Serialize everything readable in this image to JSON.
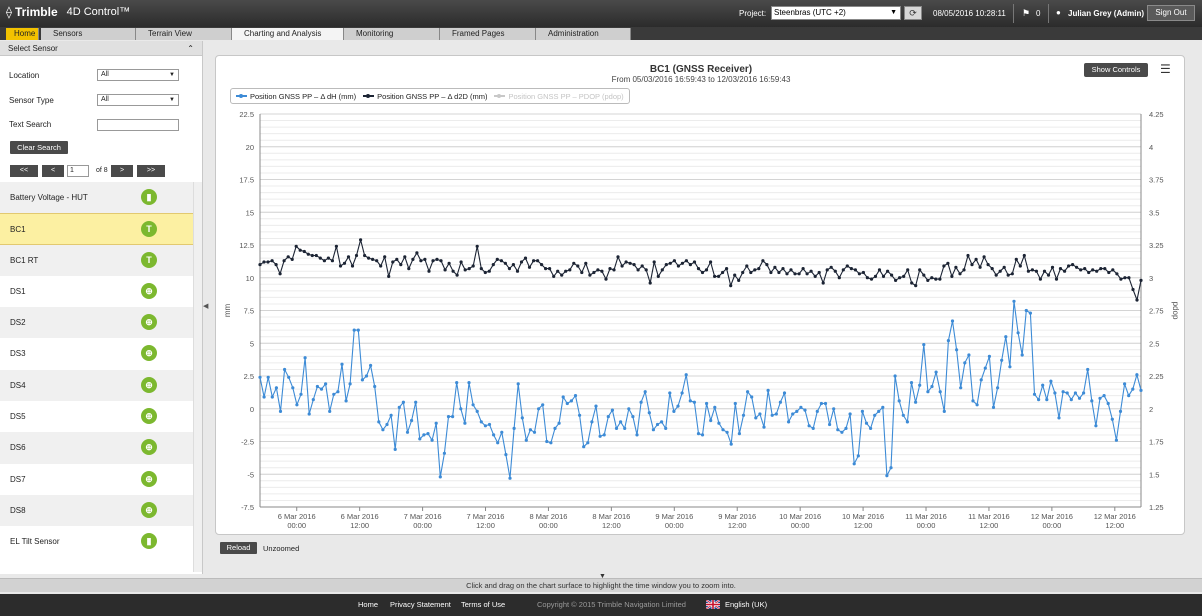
{
  "app": {
    "brand_mark": "⟠",
    "brand": "Trimble",
    "product": "4D Control™"
  },
  "header": {
    "project_label": "Project:",
    "project_value": "Steenbras (UTC +2)",
    "refresh_icon": "refresh-icon",
    "datetime": "08/05/2016 10:28:11",
    "alert_count": "0",
    "user": "Julian Grey (Admin)",
    "signout_label": "Sign Out"
  },
  "nav": {
    "tabs": [
      {
        "label": "Home"
      },
      {
        "label": "Sensors"
      },
      {
        "label": "Terrain View"
      },
      {
        "label": "Charting and Analysis"
      },
      {
        "label": "Monitoring"
      },
      {
        "label": "Framed Pages"
      },
      {
        "label": "Administration"
      }
    ]
  },
  "sidebar": {
    "header": "Select Sensor",
    "location_label": "Location",
    "location_value": "All",
    "sensor_type_label": "Sensor Type",
    "sensor_type_value": "All",
    "text_search_label": "Text Search",
    "text_search_value": "",
    "clear_search_label": "Clear Search",
    "pager": {
      "first": "<<",
      "prev": "<",
      "page": "1",
      "of": "of 8",
      "next": ">",
      "last": ">>"
    },
    "sensors": [
      {
        "name": "Battery Voltage - HUT",
        "icon": "battery-icon",
        "glyph": "▮"
      },
      {
        "name": "BC1",
        "icon": "gnss-antenna-icon",
        "glyph": "T"
      },
      {
        "name": "BC1 RT",
        "icon": "gnss-antenna-icon",
        "glyph": "T"
      },
      {
        "name": "DS1",
        "icon": "prism-icon",
        "glyph": "⊕"
      },
      {
        "name": "DS2",
        "icon": "prism-icon",
        "glyph": "⊕"
      },
      {
        "name": "DS3",
        "icon": "prism-icon",
        "glyph": "⊕"
      },
      {
        "name": "DS4",
        "icon": "prism-icon",
        "glyph": "⊕"
      },
      {
        "name": "DS5",
        "icon": "prism-icon",
        "glyph": "⊕"
      },
      {
        "name": "DS6",
        "icon": "prism-icon",
        "glyph": "⊕"
      },
      {
        "name": "DS7",
        "icon": "prism-icon",
        "glyph": "⊕"
      },
      {
        "name": "DS8",
        "icon": "prism-icon",
        "glyph": "⊕"
      },
      {
        "name": "EL Tilt Sensor",
        "icon": "tilt-sensor-icon",
        "glyph": "▮"
      }
    ],
    "selected": "BC1"
  },
  "chart_controls": {
    "show_controls_label": "Show Controls",
    "menu_icon": "hamburger-icon",
    "reload_label": "Reload",
    "zoom_status": "Unzoomed"
  },
  "chart_data": {
    "type": "line",
    "title": "BC1 (GNSS Receiver)",
    "subtitle": "From 05/03/2016 16:59:43 to 12/03/2016 16:59:43",
    "ylabel": "mm",
    "y2label": "pdop",
    "ylim": [
      -7.5,
      22.5
    ],
    "y_ticks": [
      -7.5,
      -5,
      -2.5,
      0,
      2.5,
      5,
      7.5,
      10,
      12.5,
      15,
      17.5,
      20,
      22.5
    ],
    "y2lim": [
      1.25,
      4.25
    ],
    "y2_ticks": [
      1.25,
      1.5,
      1.75,
      2,
      2.25,
      2.5,
      2.75,
      3,
      3.25,
      3.5,
      3.75,
      4,
      4.25
    ],
    "x_start": "05/03/2016 16:59:43",
    "x_end": "12/03/2016 16:59:43",
    "x_ticks": [
      {
        "date": "6 Mar 2016",
        "time": "00:00"
      },
      {
        "date": "6 Mar 2016",
        "time": "12:00"
      },
      {
        "date": "7 Mar 2016",
        "time": "00:00"
      },
      {
        "date": "7 Mar 2016",
        "time": "12:00"
      },
      {
        "date": "8 Mar 2016",
        "time": "00:00"
      },
      {
        "date": "8 Mar 2016",
        "time": "12:00"
      },
      {
        "date": "9 Mar 2016",
        "time": "00:00"
      },
      {
        "date": "9 Mar 2016",
        "time": "12:00"
      },
      {
        "date": "10 Mar 2016",
        "time": "00:00"
      },
      {
        "date": "10 Mar 2016",
        "time": "12:00"
      },
      {
        "date": "11 Mar 2016",
        "time": "00:00"
      },
      {
        "date": "11 Mar 2016",
        "time": "12:00"
      },
      {
        "date": "12 Mar 2016",
        "time": "00:00"
      },
      {
        "date": "12 Mar 2016",
        "time": "12:00"
      }
    ],
    "grid": true,
    "legend_position": "top-left",
    "series": [
      {
        "name": "Position GNSS PP – Δ dH (mm)",
        "color": "#3d8bd6",
        "axis": "left",
        "values": [
          2.4,
          0.9,
          2.4,
          0.9,
          1.6,
          -0.2,
          3.0,
          2.4,
          1.6,
          0.3,
          1.1,
          3.9,
          -0.4,
          0.7,
          1.7,
          1.5,
          1.9,
          -0.2,
          1.1,
          1.3,
          3.4,
          0.6,
          1.9,
          6.0,
          6.0,
          2.2,
          2.5,
          3.3,
          1.7,
          -1.0,
          -1.6,
          -1.2,
          -0.5,
          -3.1,
          0.1,
          0.5,
          -1.8,
          -0.9,
          0.5,
          -2.3,
          -2.0,
          -1.9,
          -2.4,
          -1.1,
          -5.2,
          -3.4,
          -0.6,
          -0.6,
          2.0,
          0.0,
          -1.1,
          2.0,
          0.3,
          -0.2,
          -1.0,
          -1.3,
          -1.2,
          -2.0,
          -2.6,
          -1.8,
          -3.5,
          -5.3,
          -1.5,
          1.9,
          -0.7,
          -2.4,
          -1.6,
          -1.8,
          0.0,
          0.3,
          -2.5,
          -2.6,
          -1.5,
          -1.1,
          0.9,
          0.4,
          0.6,
          1.0,
          -0.5,
          -2.9,
          -2.6,
          -1.0,
          0.2,
          -2.1,
          -2.0,
          -0.6,
          -0.1,
          -1.5,
          -1.0,
          -1.5,
          0.0,
          -0.6,
          -2.0,
          0.5,
          1.3,
          -0.3,
          -1.6,
          -1.2,
          -1.0,
          -1.5,
          1.2,
          -0.2,
          0.2,
          1.2,
          2.6,
          0.6,
          0.5,
          -1.9,
          -2.0,
          0.4,
          -0.9,
          0.1,
          -1.1,
          -1.6,
          -1.8,
          -2.7,
          0.4,
          -1.9,
          -0.5,
          1.3,
          0.9,
          -0.7,
          -0.4,
          -1.4,
          1.4,
          -0.5,
          -0.4,
          0.5,
          1.2,
          -1.0,
          -0.4,
          -0.2,
          0.1,
          -0.1,
          -1.3,
          -1.5,
          -0.2,
          0.4,
          0.4,
          -1.2,
          0.0,
          -1.6,
          -1.8,
          -1.5,
          -0.4,
          -4.2,
          -3.6,
          -0.2,
          -1.1,
          -1.5,
          -0.5,
          -0.2,
          0.1,
          -5.1,
          -4.5,
          2.5,
          0.6,
          -0.5,
          -1.0,
          2.0,
          0.5,
          1.8,
          4.9,
          1.3,
          1.7,
          2.8,
          1.3,
          -0.2,
          5.2,
          6.7,
          4.5,
          1.6,
          3.5,
          4.1,
          0.6,
          0.3,
          2.2,
          3.1,
          4.0,
          0.1,
          1.6,
          3.7,
          5.5,
          3.2,
          8.2,
          5.8,
          4.1,
          7.5,
          7.3,
          1.1,
          0.7,
          1.8,
          0.7,
          2.1,
          1.2,
          -0.7,
          1.3,
          1.2,
          0.7,
          1.2,
          0.8,
          1.2,
          3.0,
          0.6,
          -1.3,
          0.8,
          1.0,
          0.4,
          -0.8,
          -2.4,
          -0.2,
          1.9,
          1.0,
          1.5,
          2.6,
          1.4
        ]
      },
      {
        "name": "Position GNSS PP – Δ d2D (mm)",
        "color": "#1c2434",
        "axis": "left",
        "values": [
          11.0,
          11.2,
          11.2,
          11.3,
          11.0,
          10.3,
          11.3,
          11.6,
          11.4,
          12.4,
          12.1,
          12.0,
          11.8,
          11.7,
          11.7,
          11.5,
          11.3,
          11.5,
          11.3,
          12.4,
          10.9,
          11.1,
          11.6,
          10.9,
          11.7,
          12.9,
          11.7,
          11.5,
          11.4,
          11.3,
          10.9,
          11.6,
          10.1,
          11.2,
          11.4,
          11.0,
          11.6,
          10.7,
          11.4,
          11.9,
          11.3,
          11.4,
          10.5,
          11.3,
          11.4,
          11.3,
          10.6,
          11.1,
          10.5,
          10.2,
          11.2,
          10.6,
          10.7,
          10.9,
          12.4,
          10.7,
          10.4,
          10.5,
          11.0,
          11.4,
          11.3,
          11.1,
          10.7,
          11.0,
          10.5,
          11.2,
          11.5,
          10.8,
          11.3,
          11.3,
          11.0,
          10.7,
          10.7,
          10.1,
          10.5,
          10.2,
          10.5,
          10.6,
          11.1,
          10.9,
          10.4,
          11.1,
          10.2,
          10.4,
          10.6,
          10.5,
          9.9,
          10.7,
          10.6,
          11.6,
          10.9,
          11.2,
          11.1,
          11.0,
          10.6,
          10.9,
          10.6,
          9.6,
          11.2,
          10.1,
          10.6,
          11.0,
          11.1,
          11.3,
          10.9,
          11.1,
          11.3,
          11.0,
          11.2,
          10.7,
          10.4,
          10.6,
          11.2,
          10.1,
          10.1,
          10.4,
          10.7,
          9.4,
          10.2,
          9.8,
          10.4,
          10.9,
          10.4,
          10.6,
          10.7,
          11.3,
          11.0,
          10.4,
          10.8,
          10.4,
          10.7,
          10.3,
          10.6,
          10.3,
          10.3,
          10.7,
          10.3,
          10.5,
          10.1,
          10.4,
          9.6,
          10.6,
          10.8,
          10.5,
          10.0,
          10.6,
          10.9,
          10.7,
          10.6,
          10.3,
          10.4,
          10.0,
          9.9,
          10.1,
          10.6,
          10.1,
          10.5,
          10.2,
          9.8,
          10.0,
          10.1,
          10.6,
          9.6,
          9.4,
          10.6,
          10.2,
          9.8,
          10.0,
          9.9,
          9.9,
          10.9,
          11.1,
          10.1,
          10.8,
          10.3,
          10.6,
          11.7,
          11.0,
          11.4,
          10.8,
          11.6,
          11.0,
          10.7,
          10.2,
          10.5,
          10.8,
          10.2,
          10.3,
          11.4,
          10.9,
          11.7,
          10.5,
          10.6,
          10.5,
          9.9,
          10.5,
          10.2,
          10.8,
          9.9,
          10.7,
          10.5,
          10.9,
          11.0,
          10.8,
          10.6,
          10.7,
          10.4,
          10.6,
          10.5,
          10.7,
          10.7,
          10.4,
          10.6,
          10.3,
          9.9,
          10.0,
          10.0,
          9.1,
          8.3,
          9.8
        ]
      },
      {
        "name": "Position GNSS PP – PDOP (pdop)",
        "color": "#c8c8c8",
        "axis": "right",
        "hidden": true,
        "values": []
      }
    ]
  },
  "footer": {
    "hint": "Click and drag on the chart surface to highlight the time window you to zoom into.",
    "links": [
      "Home",
      "Privacy Statement",
      "Terms of Use"
    ],
    "copyright": "Copyright © 2015 Trimble Navigation Limited",
    "language": "English (UK)",
    "language_icon": "uk-flag-icon"
  }
}
